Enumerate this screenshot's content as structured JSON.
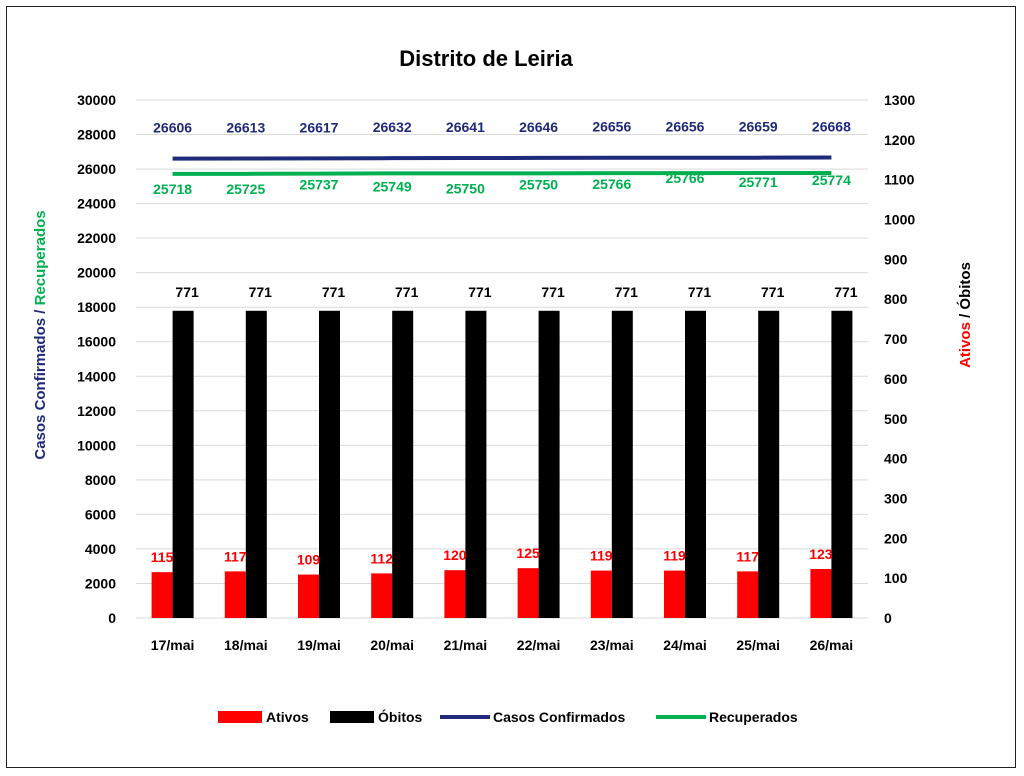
{
  "chart_data": {
    "type": "bar",
    "title": "Distrito de Leiria",
    "categories": [
      "17/mai",
      "18/mai",
      "19/mai",
      "20/mai",
      "21/mai",
      "22/mai",
      "23/mai",
      "24/mai",
      "25/mai",
      "26/mai"
    ],
    "left_axis": {
      "label_parts": [
        {
          "text": "Casos Confirmados",
          "color": "#1F2A7A"
        },
        {
          "text": " / ",
          "color": "#1F2A7A"
        },
        {
          "text": "Recuperados",
          "color": "#00B050"
        }
      ],
      "ylim": [
        0,
        30000
      ],
      "ticks": [
        "0",
        "2000",
        "4000",
        "6000",
        "8000",
        "10000",
        "12000",
        "14000",
        "16000",
        "18000",
        "20000",
        "22000",
        "24000",
        "26000",
        "28000",
        "30000"
      ]
    },
    "right_axis": {
      "label_parts": [
        {
          "text": "Ativos",
          "color": "#FF0000"
        },
        {
          "text": " / ",
          "color": "#000000"
        },
        {
          "text": "Óbitos",
          "color": "#000000"
        }
      ],
      "ylim": [
        0,
        1300
      ],
      "ticks": [
        "0",
        "100",
        "200",
        "300",
        "400",
        "500",
        "600",
        "700",
        "800",
        "900",
        "1000",
        "1100",
        "1200",
        "1300"
      ]
    },
    "series": [
      {
        "name": "Ativos",
        "type": "bar",
        "axis": "right",
        "color": "#FF0000",
        "label_color": "#FF0000",
        "values": [
          115,
          117,
          109,
          112,
          120,
          125,
          119,
          119,
          117,
          123
        ]
      },
      {
        "name": "Óbitos",
        "type": "bar",
        "axis": "right",
        "color": "#000000",
        "label_color": "#000000",
        "values": [
          771,
          771,
          771,
          771,
          771,
          771,
          771,
          771,
          771,
          771
        ]
      },
      {
        "name": "Casos Confirmados",
        "type": "line",
        "axis": "left",
        "color": "#1F2A7A",
        "label_color": "#1F2A7A",
        "values": [
          26606,
          26613,
          26617,
          26632,
          26641,
          26646,
          26656,
          26656,
          26659,
          26668
        ]
      },
      {
        "name": "Recuperados",
        "type": "line",
        "axis": "left",
        "color": "#00B050",
        "label_color": "#00B050",
        "values": [
          25718,
          25725,
          25737,
          25749,
          25750,
          25750,
          25766,
          25766,
          25771,
          25774
        ]
      }
    ],
    "grid": true,
    "legend": "bottom"
  }
}
